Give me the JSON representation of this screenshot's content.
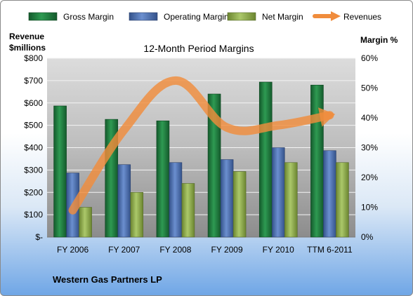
{
  "chart_data": {
    "type": "bar",
    "title": "12-Month Period Margins",
    "footer": "Western Gas Partners LP",
    "left_axis": {
      "label_line1": "Revenue",
      "label_line2": "$millions",
      "ticks": [
        "$-",
        "$100",
        "$200",
        "$300",
        "$400",
        "$500",
        "$600",
        "$700",
        "$800"
      ],
      "range": [
        0,
        800
      ]
    },
    "right_axis": {
      "label": "Margin %",
      "ticks": [
        "0%",
        "10%",
        "20%",
        "30%",
        "40%",
        "50%",
        "60%"
      ],
      "range": [
        0,
        60
      ]
    },
    "categories": [
      "FY 2006",
      "FY 2007",
      "FY 2008",
      "FY 2009",
      "FY 2010",
      "TTM 6-2011"
    ],
    "series": [
      {
        "name": "Gross Margin",
        "axis": "right",
        "color": "#1f7a3f",
        "values": [
          44,
          39.5,
          39,
          48,
          52,
          51
        ]
      },
      {
        "name": "Operating Margin",
        "axis": "right",
        "color": "#4a6fb0",
        "values": [
          21.5,
          24.3,
          25,
          26,
          30,
          29
        ]
      },
      {
        "name": "Net Margin",
        "axis": "right",
        "color": "#8fae4a",
        "values": [
          10,
          15,
          18,
          22,
          25,
          25
        ]
      }
    ],
    "line_series": {
      "name": "Revenues",
      "axis": "left",
      "color": "#f08c3c",
      "values": [
        120,
        480,
        700,
        490,
        500,
        545
      ]
    },
    "legend_position": "top",
    "grid": true
  }
}
